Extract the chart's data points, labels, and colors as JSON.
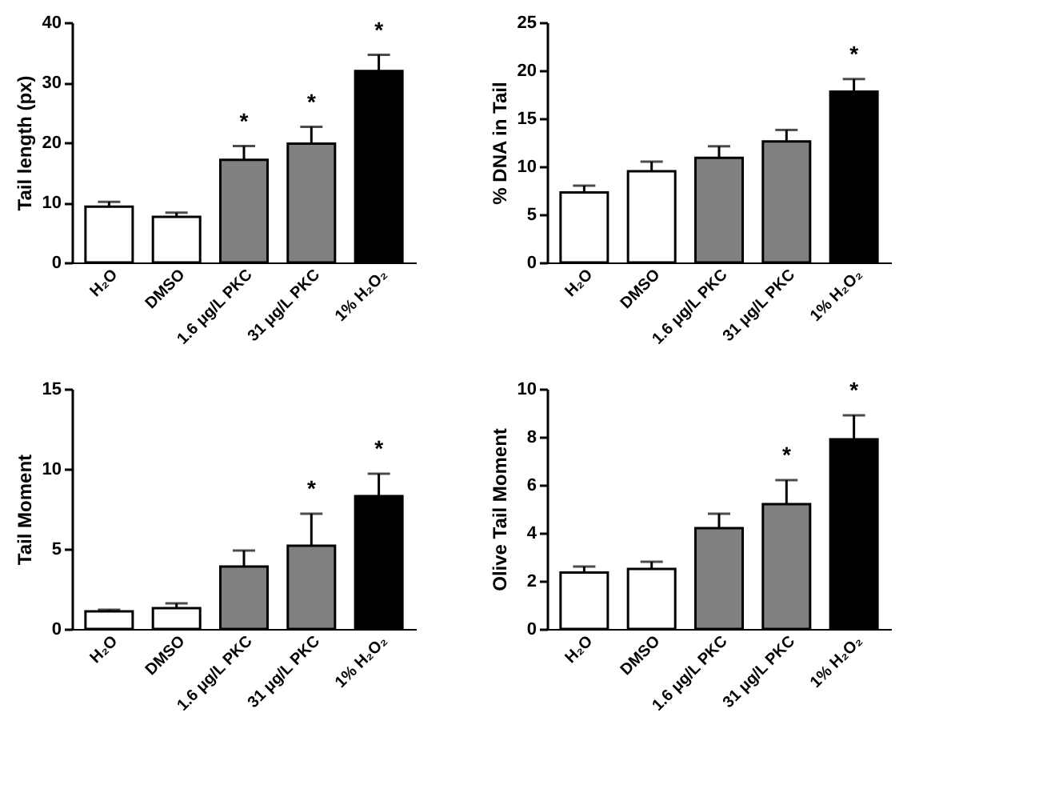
{
  "chart_data": [
    {
      "type": "bar",
      "categories": [
        "H₂O",
        "DMSO",
        "1.6 μg/L PKC",
        "31 μg/L PKC",
        "1% H₂O₂"
      ],
      "values": [
        9.3,
        7.6,
        17.1,
        19.8,
        31.9
      ],
      "errors": [
        [
          9.3,
          10.1
        ],
        [
          7.6,
          8.3
        ],
        [
          17.1,
          19.4
        ],
        [
          19.8,
          22.6
        ],
        [
          31.9,
          34.6
        ]
      ],
      "colors": [
        "#ffffff",
        "#ffffff",
        "#808080",
        "#808080",
        "#000000"
      ],
      "ylabel": "Tail length (px)",
      "ylim": [
        0,
        40
      ],
      "yticks": [
        0,
        10,
        20,
        30,
        40
      ],
      "grid": false,
      "annotations": [
        {
          "text": "*",
          "x": "1.6 μg/L PKC",
          "y": 19.4
        },
        {
          "text": "*",
          "x": "31 μg/L PKC",
          "y": 22.6
        },
        {
          "text": "*",
          "x": "1% H₂O₂",
          "y": 34.6
        }
      ]
    },
    {
      "type": "bar",
      "categories": [
        "H₂O",
        "DMSO",
        "1.6 μg/L PKC",
        "31 μg/L PKC",
        "1% H₂O₂"
      ],
      "values": [
        7.3,
        9.5,
        10.9,
        12.6,
        17.8
      ],
      "errors": [
        [
          7.3,
          8.0
        ],
        [
          9.5,
          10.5
        ],
        [
          10.9,
          12.1
        ],
        [
          12.6,
          13.8
        ],
        [
          17.8,
          19.1
        ]
      ],
      "colors": [
        "#ffffff",
        "#ffffff",
        "#808080",
        "#808080",
        "#000000"
      ],
      "ylabel": "% DNA in Tail",
      "ylim": [
        0,
        25
      ],
      "yticks": [
        0,
        5,
        10,
        15,
        20,
        25
      ],
      "grid": false,
      "annotations": [
        {
          "text": "*",
          "x": "1% H₂O₂",
          "y": 19.1
        }
      ]
    },
    {
      "type": "bar",
      "categories": [
        "H₂O",
        "DMSO",
        "1.6 μg/L PKC",
        "31 μg/L PKC",
        "1% H₂O₂"
      ],
      "values": [
        1.1,
        1.3,
        3.9,
        5.2,
        8.3
      ],
      "errors": [
        [
          1.1,
          1.2
        ],
        [
          1.3,
          1.6
        ],
        [
          3.9,
          4.9
        ],
        [
          5.2,
          7.2
        ],
        [
          8.3,
          9.7
        ]
      ],
      "colors": [
        "#ffffff",
        "#ffffff",
        "#808080",
        "#808080",
        "#000000"
      ],
      "ylabel": "Tail Moment",
      "ylim": [
        0,
        15
      ],
      "yticks": [
        0,
        5,
        10,
        15
      ],
      "grid": false,
      "annotations": [
        {
          "text": "*",
          "x": "31 μg/L PKC",
          "y": 7.2
        },
        {
          "text": "*",
          "x": "1% H₂O₂",
          "y": 9.7
        }
      ]
    },
    {
      "type": "bar",
      "categories": [
        "H₂O",
        "DMSO",
        "1.6 μg/L PKC",
        "31 μg/L PKC",
        "1% H₂O₂"
      ],
      "values": [
        2.35,
        2.5,
        4.2,
        5.2,
        7.9
      ],
      "errors": [
        [
          2.35,
          2.6
        ],
        [
          2.5,
          2.8
        ],
        [
          4.2,
          4.8
        ],
        [
          5.2,
          6.2
        ],
        [
          7.9,
          8.9
        ]
      ],
      "colors": [
        "#ffffff",
        "#ffffff",
        "#808080",
        "#808080",
        "#000000"
      ],
      "ylabel": "Olive Tail Moment",
      "ylim": [
        0,
        10
      ],
      "yticks": [
        0,
        2,
        4,
        6,
        8,
        10
      ],
      "grid": false,
      "annotations": [
        {
          "text": "*",
          "x": "31 μg/L PKC",
          "y": 6.2
        },
        {
          "text": "*",
          "x": "1% H₂O₂",
          "y": 8.9
        }
      ]
    }
  ]
}
